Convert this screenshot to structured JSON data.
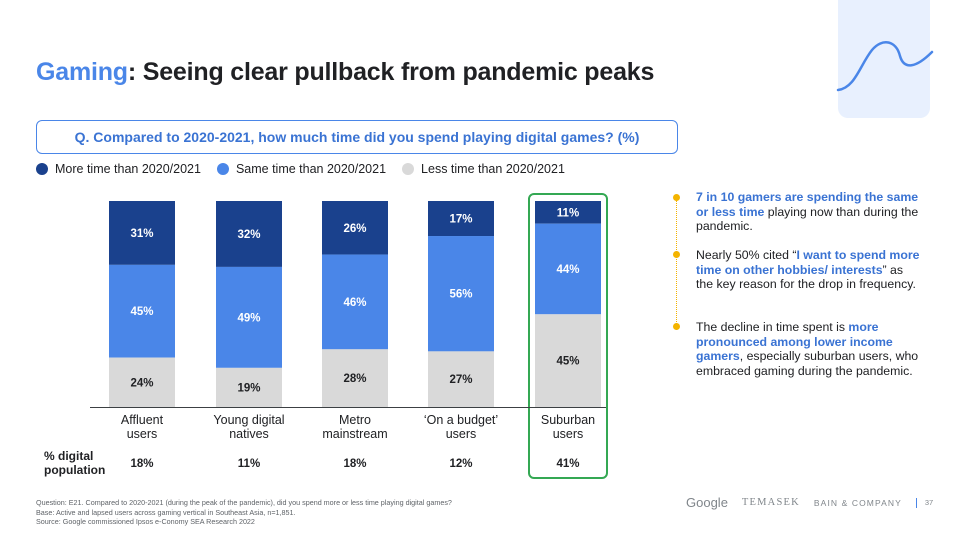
{
  "title": {
    "accent": "Gaming",
    "rest": ": Seeing clear pullback from pandemic peaks"
  },
  "question": "Q. Compared to 2020-2021, how much time did you spend playing digital games? (%)",
  "colors": {
    "more": "#1a418d",
    "same": "#4a86e8",
    "less": "#d9d9d9",
    "accent": "#4a86e8",
    "highlight_box": "#34a853",
    "bullet": "#f4b400"
  },
  "chart_data": {
    "type": "bar",
    "stacked": true,
    "orientation": "vertical",
    "categories": [
      {
        "line1": "Affluent",
        "line2": "users"
      },
      {
        "line1": "Young digital",
        "line2": "natives"
      },
      {
        "line1": "Metro",
        "line2": "mainstream"
      },
      {
        "line1": "‘On a budget’",
        "line2": "users"
      },
      {
        "line1": "Suburban",
        "line2": "users"
      }
    ],
    "series": [
      {
        "name": "More time than 2020/2021",
        "values": [
          31,
          32,
          26,
          17,
          11
        ],
        "color": "#1a418d"
      },
      {
        "name": "Same time than 2020/2021",
        "values": [
          45,
          49,
          46,
          56,
          44
        ],
        "color": "#4a86e8"
      },
      {
        "name": "Less time than 2020/2021",
        "values": [
          24,
          19,
          28,
          27,
          45
        ],
        "color": "#d9d9d9"
      }
    ],
    "value_suffix": "%",
    "ylim": [
      0,
      100
    ],
    "legend_position": "top-left",
    "highlighted_category": 4,
    "digital_population": {
      "label_line1": "% digital",
      "label_line2": "population",
      "values": [
        "18%",
        "11%",
        "18%",
        "12%",
        "41%"
      ]
    }
  },
  "insights": {
    "note1": {
      "hl": "7 in 10 gamers are spending the same or less time",
      "rest": " playing now than during the pandemic."
    },
    "note2": {
      "pre": "Nearly 50% cited “",
      "hl": "I want to spend more time on other hobbies/ interests",
      "rest": "” as the key reason for the drop in frequency."
    },
    "note3": {
      "pre": "The decline in time spent is ",
      "hl": "more pronounced among lower income gamers",
      "rest": ", especially suburban users, who embraced gaming during the pandemic."
    }
  },
  "footnotes": {
    "question": "Question: E21. Compared to 2020-2021 (during the peak of the pandemic), did you spend more or less time playing digital games?",
    "base": "Base: Active and lapsed users across gaming vertical in Southeast Asia, n=1,851.",
    "source": "Source: Google commissioned Ipsos e-Conomy SEA Research 2022"
  },
  "logos": {
    "google": "Google",
    "temasek": "TEMASEK",
    "bain": "BAIN & COMPANY",
    "page": "37"
  }
}
